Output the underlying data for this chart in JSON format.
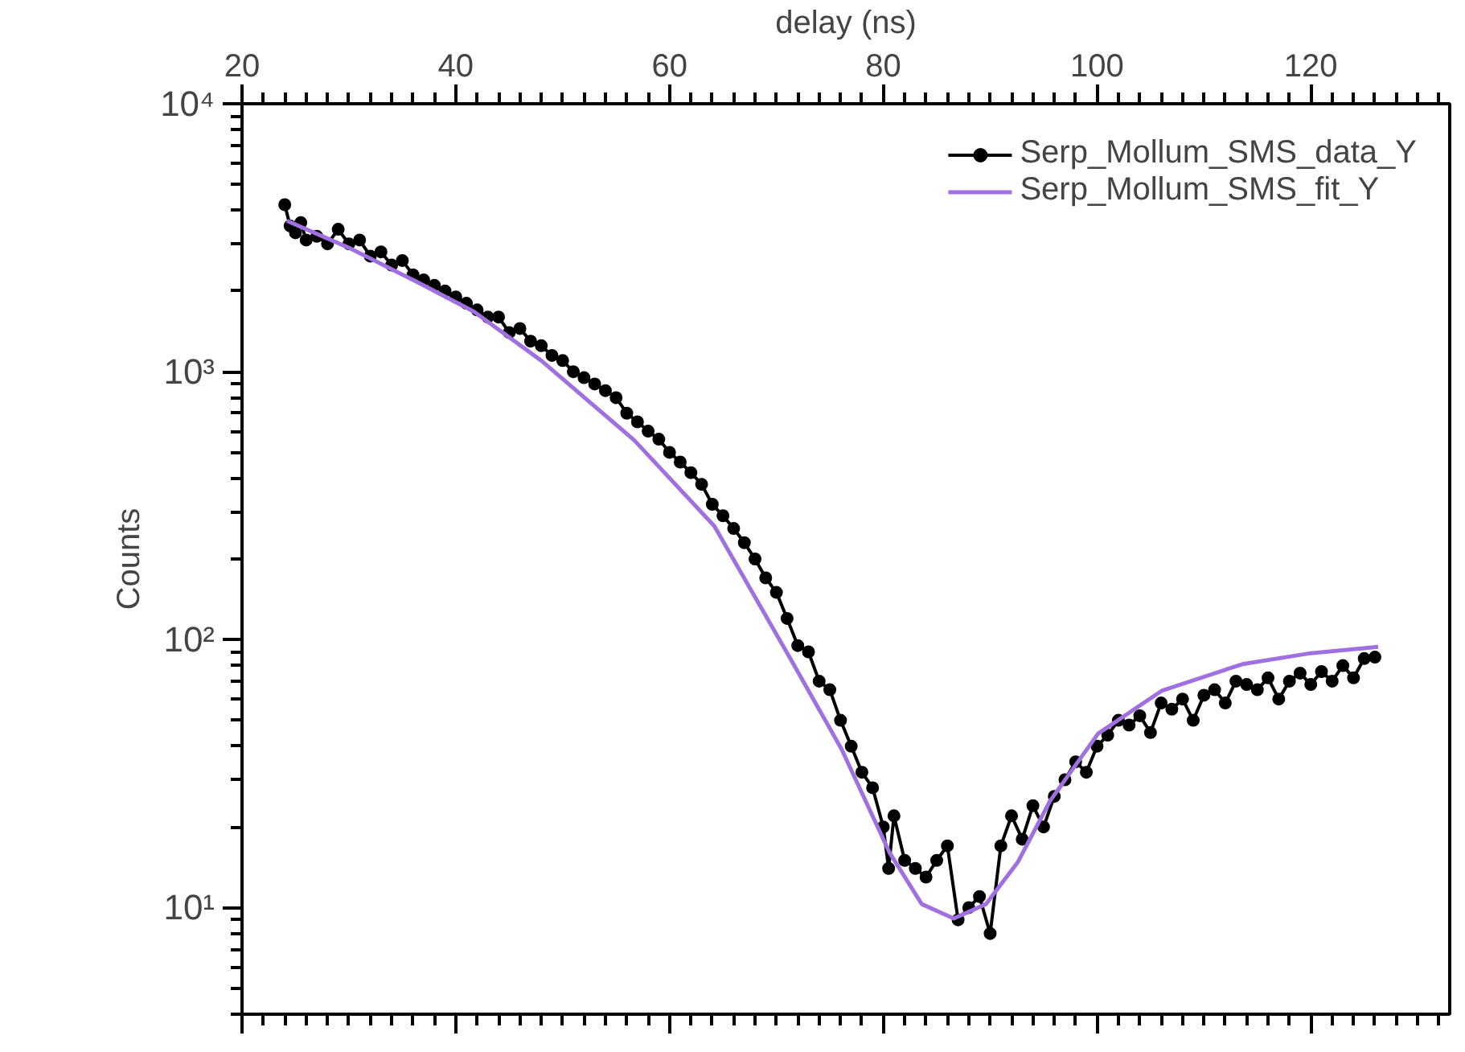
{
  "chart_data": {
    "type": "line",
    "xlabel": "delay (ns)",
    "ylabel": "Counts",
    "xlim": [
      20,
      133
    ],
    "xticks": [
      20,
      40,
      60,
      80,
      100,
      120
    ],
    "ylim": [
      4,
      10000
    ],
    "yticks": [
      {
        "value": 10,
        "label": "10¹"
      },
      {
        "value": 100,
        "label": "10²"
      },
      {
        "value": 1000,
        "label": "10³"
      },
      {
        "value": 10000,
        "label": "10⁴"
      }
    ],
    "log": "y",
    "grid": false,
    "legend": "top right",
    "series": [
      {
        "name": "Serp_Mollum_SMS_data_Y",
        "color": "#000000",
        "marker": "circle",
        "line_style": "solid",
        "x": [
          24,
          24.5,
          25,
          25.5,
          26,
          27,
          28,
          29,
          30,
          31,
          32,
          33,
          34,
          35,
          36,
          37,
          38,
          39,
          40,
          41,
          42,
          43,
          44,
          45,
          46,
          47,
          48,
          49,
          50,
          51,
          52,
          53,
          54,
          55,
          56,
          57,
          58,
          59,
          60,
          61,
          62,
          63,
          64,
          65,
          66,
          67,
          68,
          69,
          70,
          71,
          72,
          73,
          74,
          75,
          76,
          77,
          78,
          79,
          80,
          80.5,
          81,
          82,
          83,
          84,
          85,
          86,
          87,
          88,
          89,
          90,
          91,
          92,
          93,
          94,
          95,
          96,
          97,
          98,
          99,
          100,
          101,
          102,
          103,
          104,
          105,
          106,
          107,
          108,
          109,
          110,
          111,
          112,
          113,
          114,
          115,
          116,
          117,
          118,
          119,
          120,
          121,
          122,
          123,
          124,
          125,
          126
        ],
        "values": [
          4200,
          3500,
          3300,
          3600,
          3100,
          3200,
          3000,
          3400,
          3000,
          3100,
          2700,
          2800,
          2500,
          2600,
          2300,
          2200,
          2100,
          2000,
          1900,
          1800,
          1700,
          1600,
          1600,
          1400,
          1450,
          1300,
          1250,
          1150,
          1100,
          1000,
          950,
          900,
          850,
          800,
          700,
          650,
          600,
          560,
          500,
          460,
          420,
          380,
          320,
          290,
          260,
          230,
          200,
          170,
          150,
          120,
          95,
          90,
          70,
          65,
          50,
          40,
          32,
          28,
          20,
          14,
          22,
          15,
          14,
          13,
          15,
          17,
          9,
          10,
          11,
          8,
          17,
          22,
          18,
          24,
          20,
          26,
          30,
          35,
          32,
          40,
          44,
          50,
          48,
          52,
          45,
          58,
          55,
          60,
          50,
          62,
          65,
          58,
          70,
          68,
          65,
          72,
          60,
          70,
          75,
          68,
          76,
          70,
          80,
          72,
          85,
          86
        ]
      },
      {
        "name": "Serp_Mollum_SMS_fit_Y",
        "color": "#a070e0",
        "marker": "none",
        "line_style": "solid",
        "x": [
          24.2,
          30,
          36,
          41.7,
          48,
          56.7,
          64.2,
          71.6,
          76.1,
          80.6,
          83.6,
          86.6,
          89.6,
          92.6,
          95.6,
          100.1,
          106.1,
          113.6,
          120,
          126.3
        ],
        "values": [
          3660,
          2900,
          2200,
          1675,
          1100,
          555,
          265,
          81,
          39,
          16,
          10.3,
          9.1,
          10.3,
          14.8,
          25,
          44.6,
          64.6,
          81,
          89,
          94
        ]
      }
    ]
  }
}
